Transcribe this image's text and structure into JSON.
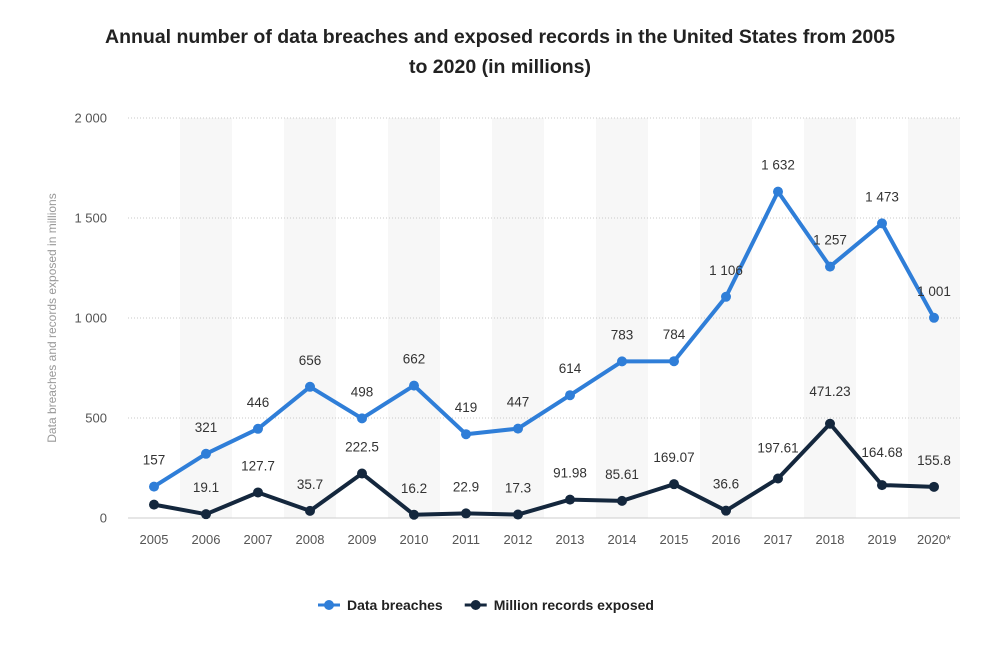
{
  "chart_data": {
    "type": "line",
    "title_lines": [
      "Annual number of data breaches and exposed records in the United States from 2005",
      "to 2020 (in millions)"
    ],
    "ylabel": "Data breaches and records exposed in millions",
    "xlabel": "",
    "categories": [
      "2005",
      "2006",
      "2007",
      "2008",
      "2009",
      "2010",
      "2011",
      "2012",
      "2013",
      "2014",
      "2015",
      "2016",
      "2017",
      "2018",
      "2019",
      "2020*"
    ],
    "ylim": [
      0,
      2000
    ],
    "yticks": [
      0,
      500,
      1000,
      1500,
      2000
    ],
    "ytick_labels": [
      "0",
      "500",
      "1 000",
      "1 500",
      "2 000"
    ],
    "grid": true,
    "legend_position": "bottom-center",
    "series": [
      {
        "name": "Data breaches",
        "color": "#2f7ed8",
        "values": [
          157,
          321,
          446,
          656,
          498,
          662,
          419,
          447,
          614,
          783,
          784,
          1106,
          1632,
          1257,
          1473,
          1001
        ],
        "labels": [
          "157",
          "321",
          "446",
          "656",
          "498",
          "662",
          "419",
          "447",
          "614",
          "783",
          "784",
          "1 106",
          "1 632",
          "1 257",
          "1 473",
          "1 001"
        ]
      },
      {
        "name": "Million records exposed",
        "color": "#14273d",
        "values": [
          66.9,
          19.1,
          127.7,
          35.7,
          222.5,
          16.2,
          22.9,
          17.3,
          91.98,
          85.61,
          169.07,
          36.6,
          197.61,
          471.23,
          164.68,
          155.8
        ],
        "labels": [
          "",
          "19.1",
          "127.7",
          "35.7",
          "222.5",
          "16.2",
          "22.9",
          "17.3",
          "91.98",
          "85.61",
          "169.07",
          "36.6",
          "197.61",
          "471.23",
          "164.68",
          "155.8"
        ]
      }
    ]
  }
}
